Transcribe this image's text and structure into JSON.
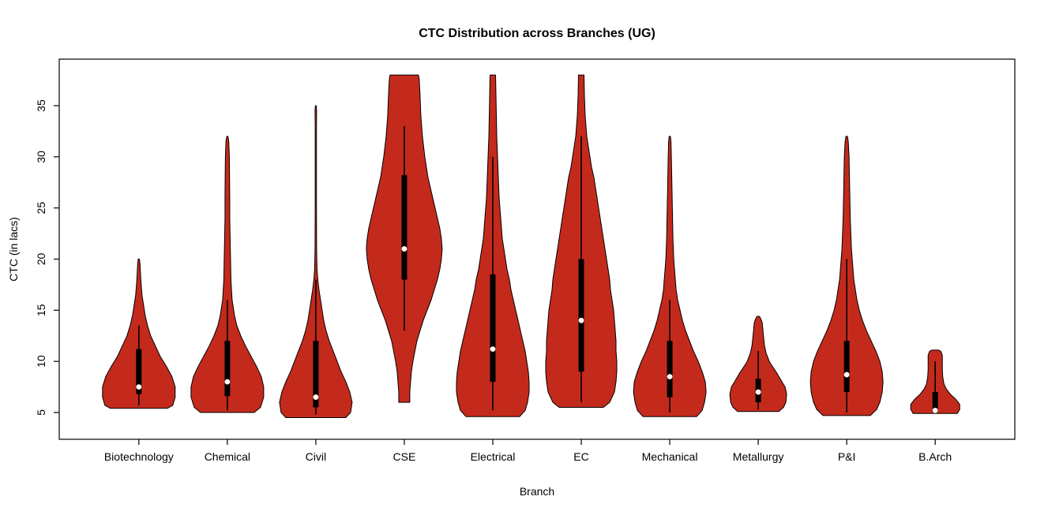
{
  "colors": {
    "violin_fill": "#C42A1C",
    "violin_stroke": "#000000",
    "box": "#000000",
    "median_dot": "#FFFFFF",
    "background": "#FFFFFF"
  },
  "chart_data": {
    "type": "violin",
    "title": "CTC Distribution across Branches (UG)",
    "xlabel": "Branch",
    "ylabel": "CTC (in lacs)",
    "yticks": [
      5,
      10,
      15,
      20,
      25,
      30,
      35
    ],
    "ylim": [
      2.38,
      39.55
    ],
    "grid": false,
    "legend": "none",
    "categories": [
      "Biotechnology",
      "Chemical",
      "Civil",
      "CSE",
      "Electrical",
      "EC",
      "Mechanical",
      "Metallurgy",
      "P&I",
      "B.Arch"
    ],
    "violins": [
      {
        "label": "Biotechnology",
        "min": 5.4,
        "max": 20,
        "q1": 6.8,
        "q3": 11.2,
        "median": 7.5,
        "whisker_low": 5.7,
        "whisker_high": 13.5,
        "profile": [
          [
            5.4,
            36
          ],
          [
            5.7,
            43
          ],
          [
            6.5,
            46
          ],
          [
            7.5,
            46
          ],
          [
            8.5,
            42
          ],
          [
            9.5,
            35
          ],
          [
            10.5,
            27
          ],
          [
            11.5,
            21
          ],
          [
            12.5,
            15
          ],
          [
            13.5,
            11
          ],
          [
            14.5,
            8
          ],
          [
            15.5,
            6
          ],
          [
            16.5,
            4
          ],
          [
            18,
            2.5
          ],
          [
            19.5,
            1.5
          ],
          [
            20,
            0.8
          ]
        ]
      },
      {
        "label": "Chemical",
        "min": 5.0,
        "max": 32,
        "q1": 6.6,
        "q3": 12,
        "median": 8,
        "whisker_low": 5.2,
        "whisker_high": 16,
        "profile": [
          [
            5.0,
            34
          ],
          [
            5.5,
            42
          ],
          [
            6.5,
            46
          ],
          [
            7.5,
            46
          ],
          [
            8.5,
            43
          ],
          [
            9.5,
            37
          ],
          [
            10.5,
            30
          ],
          [
            11.5,
            23
          ],
          [
            12.5,
            17
          ],
          [
            13.5,
            12
          ],
          [
            14.5,
            9
          ],
          [
            16,
            6
          ],
          [
            18,
            4.5
          ],
          [
            20,
            4
          ],
          [
            22,
            3.5
          ],
          [
            24,
            3
          ],
          [
            26,
            3
          ],
          [
            28,
            2.8
          ],
          [
            30,
            2.5
          ],
          [
            31.5,
            1.8
          ],
          [
            32,
            0.8
          ]
        ]
      },
      {
        "label": "Civil",
        "min": 4.5,
        "max": 35,
        "q1": 5.5,
        "q3": 12,
        "median": 6.5,
        "whisker_low": 4.8,
        "whisker_high": 18,
        "profile": [
          [
            4.5,
            38
          ],
          [
            5,
            44
          ],
          [
            6,
            46
          ],
          [
            7,
            43
          ],
          [
            8,
            38
          ],
          [
            9,
            32
          ],
          [
            10,
            27
          ],
          [
            11,
            22
          ],
          [
            12,
            17
          ],
          [
            13,
            13
          ],
          [
            14,
            10
          ],
          [
            15,
            8
          ],
          [
            16,
            6
          ],
          [
            17,
            4
          ],
          [
            18,
            2.5
          ],
          [
            19,
            1.5
          ],
          [
            21,
            1
          ],
          [
            25,
            0.8
          ],
          [
            30,
            0.8
          ],
          [
            33,
            0.8
          ],
          [
            34.5,
            1
          ],
          [
            35,
            0.5
          ]
        ]
      },
      {
        "label": "CSE",
        "min": 6,
        "max": 38,
        "q1": 18,
        "q3": 28.2,
        "median": 21,
        "whisker_low": 13,
        "whisker_high": 33,
        "profile": [
          [
            6,
            7
          ],
          [
            7,
            7
          ],
          [
            8,
            8
          ],
          [
            9,
            9
          ],
          [
            10,
            11
          ],
          [
            12,
            16
          ],
          [
            14,
            24
          ],
          [
            16,
            34
          ],
          [
            18,
            42
          ],
          [
            19,
            45
          ],
          [
            20,
            47
          ],
          [
            21,
            48
          ],
          [
            22,
            47
          ],
          [
            23,
            45
          ],
          [
            24,
            42
          ],
          [
            26,
            36
          ],
          [
            28,
            30
          ],
          [
            30,
            26
          ],
          [
            32,
            23
          ],
          [
            34,
            21
          ],
          [
            36,
            20
          ],
          [
            37.5,
            19
          ],
          [
            38,
            18
          ]
        ]
      },
      {
        "label": "Electrical",
        "min": 4.6,
        "max": 38,
        "q1": 8,
        "q3": 18.5,
        "median": 11.2,
        "whisker_low": 5.2,
        "whisker_high": 30,
        "profile": [
          [
            4.6,
            34
          ],
          [
            5.2,
            41
          ],
          [
            6,
            44
          ],
          [
            7,
            46
          ],
          [
            8,
            46
          ],
          [
            9,
            45
          ],
          [
            10,
            43
          ],
          [
            11,
            41
          ],
          [
            12,
            38
          ],
          [
            13,
            35
          ],
          [
            14,
            32
          ],
          [
            15,
            29
          ],
          [
            16,
            26
          ],
          [
            17,
            23
          ],
          [
            18,
            21
          ],
          [
            19,
            18
          ],
          [
            20,
            16
          ],
          [
            21,
            14
          ],
          [
            22,
            12
          ],
          [
            24,
            10
          ],
          [
            26,
            8
          ],
          [
            28,
            7
          ],
          [
            30,
            6
          ],
          [
            32,
            5
          ],
          [
            34,
            4.5
          ],
          [
            36,
            4
          ],
          [
            38,
            3.5
          ]
        ]
      },
      {
        "label": "EC",
        "min": 5.5,
        "max": 38,
        "q1": 9,
        "q3": 20,
        "median": 14,
        "whisker_low": 6,
        "whisker_high": 32,
        "profile": [
          [
            5.5,
            28
          ],
          [
            6,
            36
          ],
          [
            7,
            42
          ],
          [
            8,
            44
          ],
          [
            9,
            45
          ],
          [
            10,
            45
          ],
          [
            11,
            44
          ],
          [
            12,
            44
          ],
          [
            13,
            43
          ],
          [
            14,
            42
          ],
          [
            15,
            41
          ],
          [
            16,
            39
          ],
          [
            17,
            37
          ],
          [
            18,
            36
          ],
          [
            19,
            34
          ],
          [
            20,
            32
          ],
          [
            21,
            30
          ],
          [
            22,
            28
          ],
          [
            23,
            26
          ],
          [
            24,
            24
          ],
          [
            25,
            22
          ],
          [
            26,
            20
          ],
          [
            27,
            18
          ],
          [
            28,
            16
          ],
          [
            29,
            13
          ],
          [
            30,
            11
          ],
          [
            31,
            9
          ],
          [
            32,
            7
          ],
          [
            33,
            6
          ],
          [
            34,
            5
          ],
          [
            36,
            4
          ],
          [
            38,
            3.5
          ]
        ]
      },
      {
        "label": "Mechanical",
        "min": 4.6,
        "max": 32,
        "q1": 6.5,
        "q3": 12,
        "median": 8.5,
        "whisker_low": 5,
        "whisker_high": 16,
        "profile": [
          [
            4.6,
            34
          ],
          [
            5.2,
            41
          ],
          [
            6,
            44
          ],
          [
            7,
            46
          ],
          [
            8,
            45
          ],
          [
            9,
            41
          ],
          [
            10,
            36
          ],
          [
            11,
            30
          ],
          [
            12,
            25
          ],
          [
            13,
            20
          ],
          [
            14,
            16
          ],
          [
            15,
            13
          ],
          [
            16,
            10
          ],
          [
            17,
            8
          ],
          [
            18,
            7
          ],
          [
            19,
            6
          ],
          [
            20,
            5
          ],
          [
            21,
            4.5
          ],
          [
            22,
            4
          ],
          [
            24,
            3.5
          ],
          [
            26,
            3
          ],
          [
            28,
            2.5
          ],
          [
            30,
            2
          ],
          [
            31.5,
            1.5
          ],
          [
            32,
            0.8
          ]
        ]
      },
      {
        "label": "Metallurgy",
        "min": 5.1,
        "max": 14.4,
        "q1": 6,
        "q3": 8.3,
        "median": 7,
        "whisker_low": 5.3,
        "whisker_high": 11,
        "profile": [
          [
            5.1,
            26
          ],
          [
            5.5,
            32
          ],
          [
            6,
            35
          ],
          [
            6.8,
            36
          ],
          [
            7.5,
            34
          ],
          [
            8,
            30
          ],
          [
            8.8,
            24
          ],
          [
            9.5,
            18
          ],
          [
            10,
            14
          ],
          [
            10.8,
            10
          ],
          [
            11.5,
            8
          ],
          [
            12.2,
            7
          ],
          [
            13,
            6
          ],
          [
            13.8,
            5
          ],
          [
            14.2,
            3
          ],
          [
            14.4,
            1.5
          ]
        ]
      },
      {
        "label": "P&I",
        "min": 4.7,
        "max": 32,
        "q1": 7,
        "q3": 12,
        "median": 8.7,
        "whisker_low": 5,
        "whisker_high": 20,
        "profile": [
          [
            4.7,
            30
          ],
          [
            5.3,
            38
          ],
          [
            6,
            42
          ],
          [
            7,
            45
          ],
          [
            8,
            46
          ],
          [
            9,
            45
          ],
          [
            10,
            42
          ],
          [
            11,
            37
          ],
          [
            12,
            31
          ],
          [
            13,
            25
          ],
          [
            14,
            20
          ],
          [
            15,
            16
          ],
          [
            16,
            13
          ],
          [
            17,
            11
          ],
          [
            18,
            9
          ],
          [
            19,
            8
          ],
          [
            20,
            7
          ],
          [
            21,
            6
          ],
          [
            22,
            5.5
          ],
          [
            24,
            4.5
          ],
          [
            26,
            4
          ],
          [
            28,
            3.5
          ],
          [
            30,
            3
          ],
          [
            31.5,
            2
          ],
          [
            32,
            1
          ]
        ]
      },
      {
        "label": "B.Arch",
        "min": 4.9,
        "max": 11.1,
        "q1": 5,
        "q3": 7,
        "median": 5.2,
        "whisker_low": 4.9,
        "whisker_high": 10,
        "profile": [
          [
            4.9,
            28
          ],
          [
            5.3,
            31
          ],
          [
            5.8,
            31
          ],
          [
            6.3,
            26
          ],
          [
            6.8,
            19
          ],
          [
            7.3,
            14
          ],
          [
            7.8,
            11
          ],
          [
            8.5,
            9.5
          ],
          [
            9.2,
            9
          ],
          [
            10,
            9
          ],
          [
            10.6,
            9
          ],
          [
            11,
            7
          ],
          [
            11.1,
            4
          ]
        ]
      }
    ]
  }
}
